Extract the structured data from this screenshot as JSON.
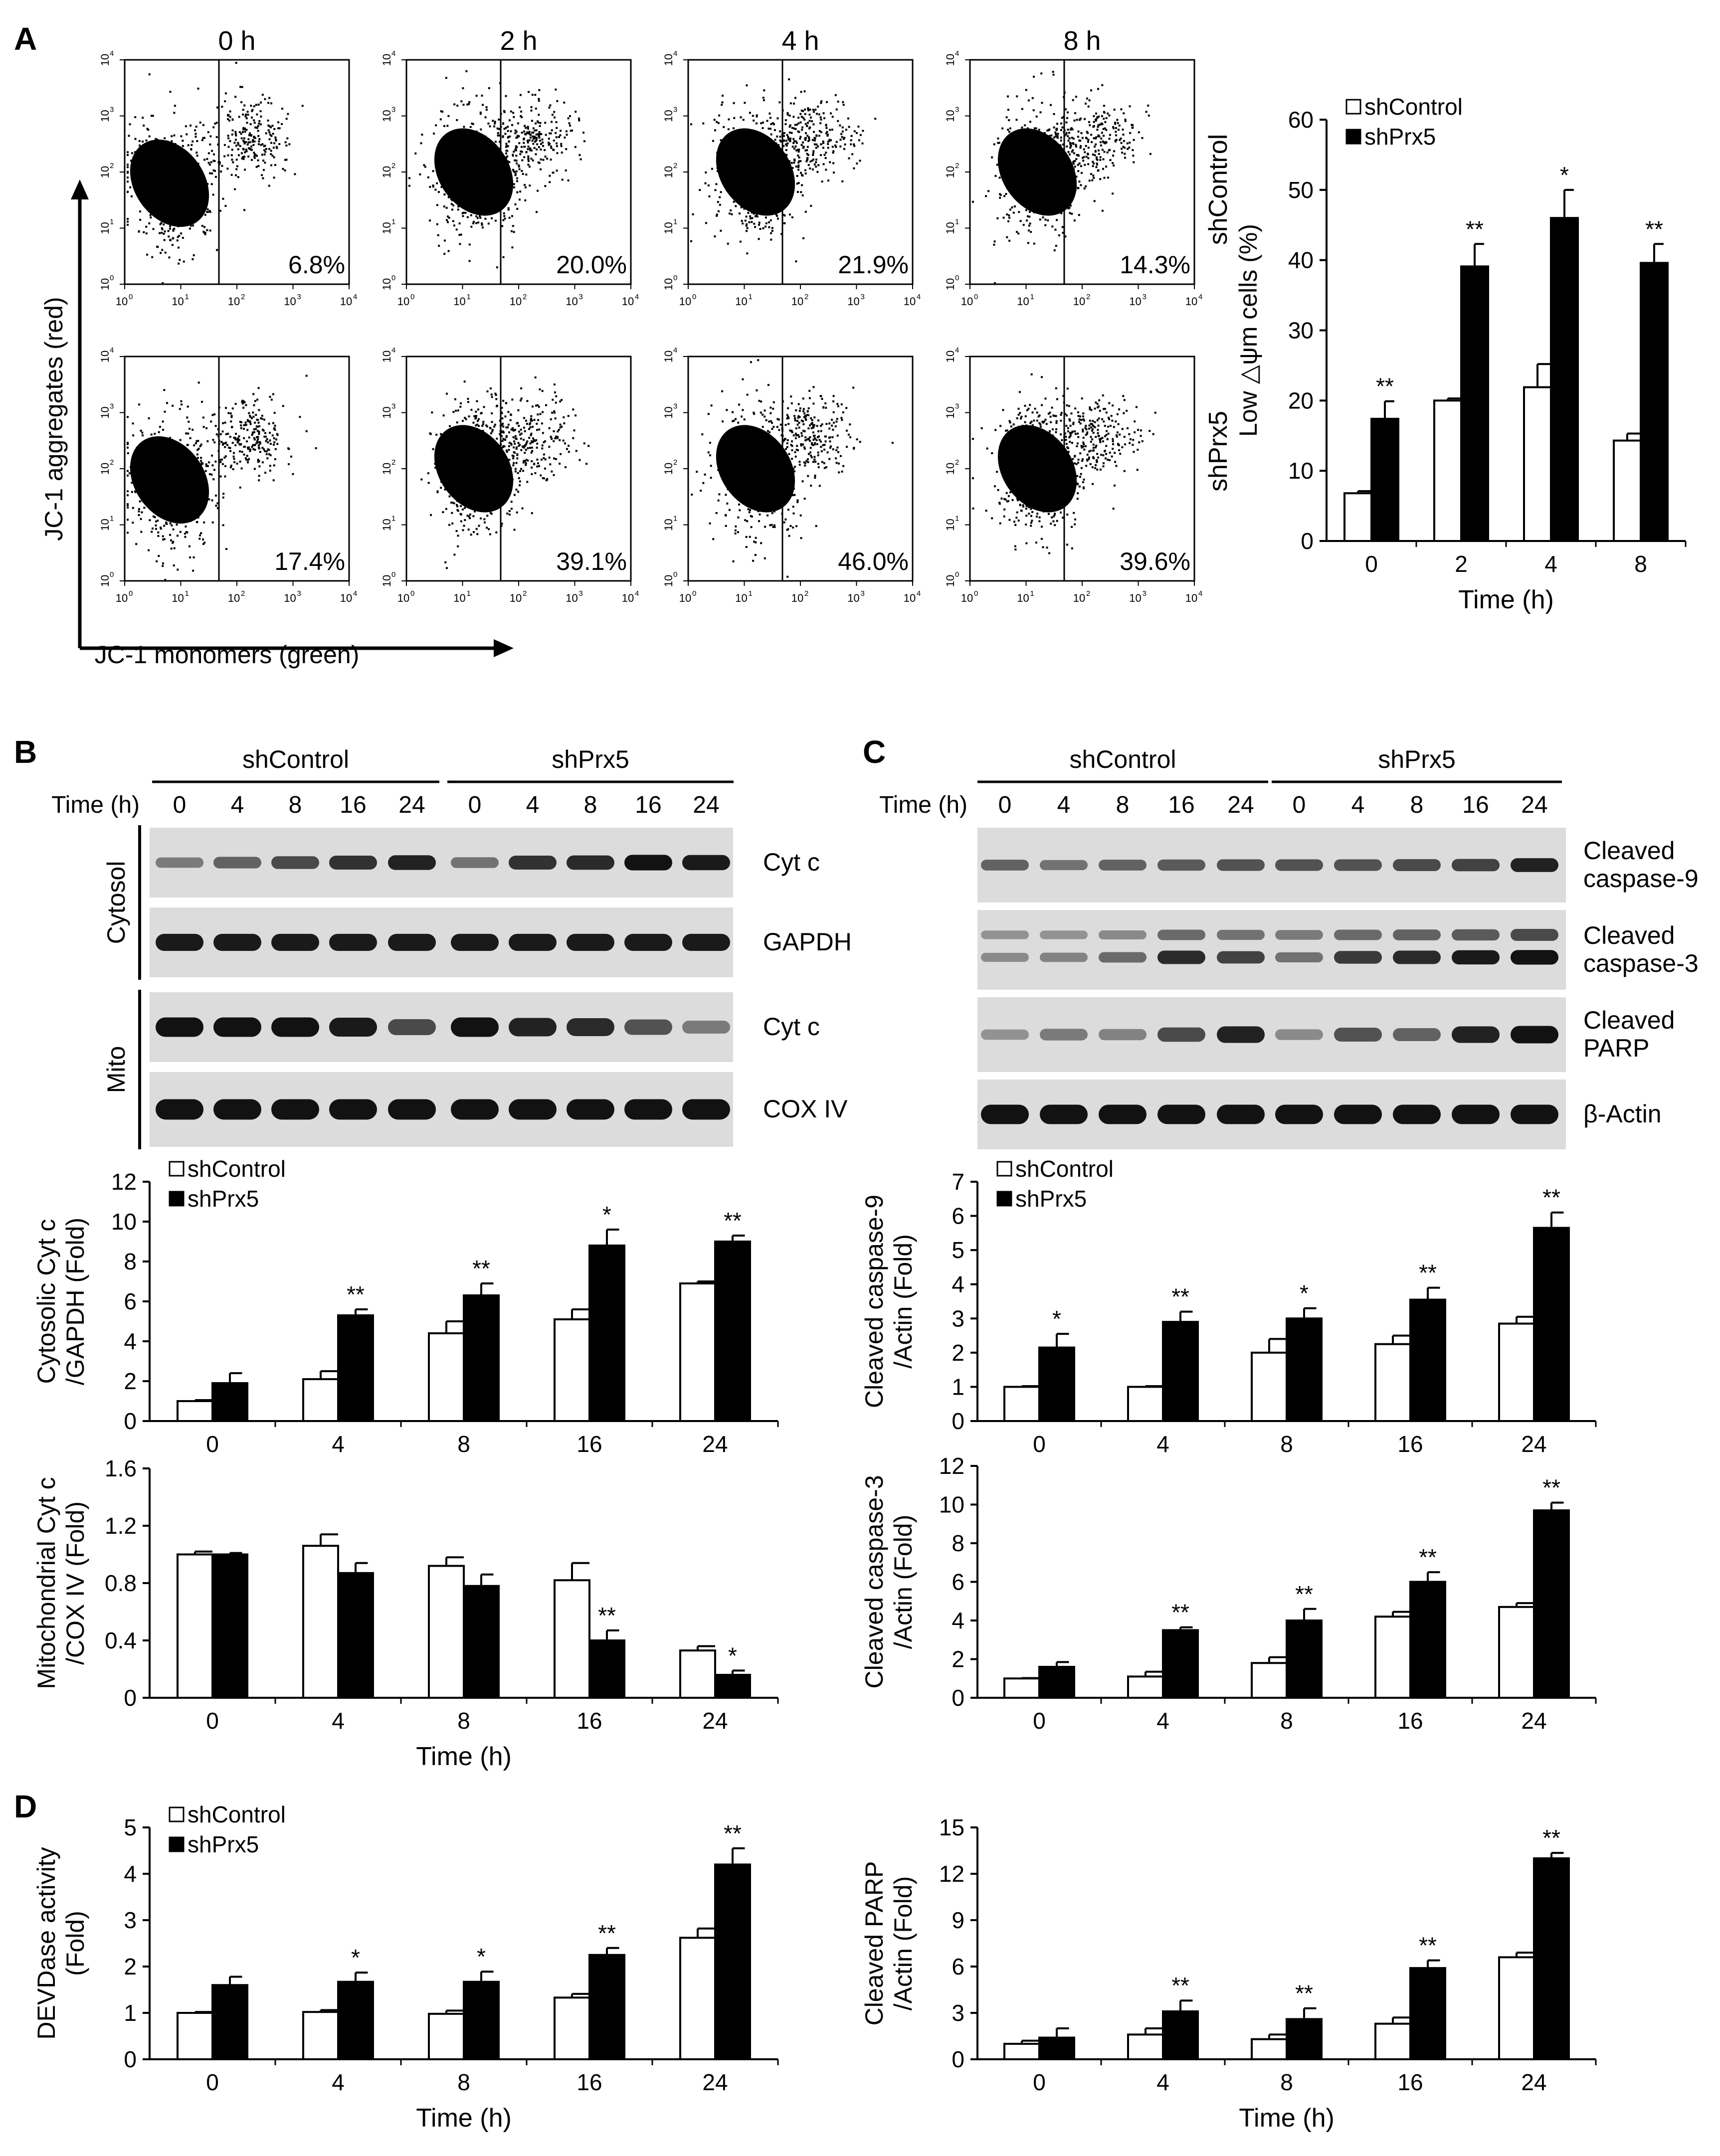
{
  "panel_letters": [
    "A",
    "B",
    "C",
    "D"
  ],
  "panel_A": {
    "time_labels": [
      "0 h",
      "2 h",
      "4 h",
      "8 h"
    ],
    "row_labels": [
      "shControl",
      "shPrx5"
    ],
    "percentages": [
      [
        "6.8%",
        "20.0%",
        "21.9%",
        "14.3%"
      ],
      [
        "17.4%",
        "39.1%",
        "46.0%",
        "39.6%"
      ]
    ],
    "y_axis_title": "JC-1 aggregates (red)",
    "x_axis_title": "JC-1 monomers (green)",
    "log_ticks": [
      "10",
      "10",
      "10",
      "10",
      "10"
    ],
    "log_exponents": [
      "0",
      "1",
      "2",
      "3",
      "4"
    ]
  },
  "blots_B": {
    "groups": [
      "shControl",
      "shPrx5"
    ],
    "time_label": "Time (h)",
    "lanes": [
      "0",
      "4",
      "8",
      "16",
      "24",
      "0",
      "4",
      "8",
      "16",
      "24"
    ],
    "fractions": [
      "Cytosol",
      "Mito"
    ],
    "bands": [
      "Cyt c",
      "GAPDH",
      "Cyt c",
      "COX IV"
    ]
  },
  "blots_C": {
    "groups": [
      "shControl",
      "shPrx5"
    ],
    "time_label": "Time (h)",
    "lanes": [
      "0",
      "4",
      "8",
      "16",
      "24",
      "0",
      "4",
      "8",
      "16",
      "24"
    ],
    "bands": [
      [
        "Cleaved",
        "caspase-9"
      ],
      [
        "Cleaved",
        "caspase-3"
      ],
      [
        "Cleaved",
        "PARP"
      ],
      [
        "β-Actin"
      ]
    ]
  },
  "legend": {
    "control": "shControl",
    "knockdown": "shPrx5"
  },
  "colors": {
    "control": "#ffffff",
    "knockdown": "#000000",
    "ink": "#000000"
  },
  "chart_data": [
    {
      "id": "A-bar",
      "type": "bar",
      "categories": [
        "0",
        "2",
        "4",
        "8"
      ],
      "series": [
        {
          "name": "shControl",
          "values": [
            6.8,
            20.0,
            21.9,
            14.3
          ],
          "errors": [
            0.3,
            0.3,
            3.3,
            1.0
          ]
        },
        {
          "name": "shPrx5",
          "values": [
            17.4,
            39.1,
            46.0,
            39.6
          ],
          "errors": [
            2.5,
            3.2,
            4.0,
            2.7
          ]
        }
      ],
      "significance": [
        "**",
        "**",
        "*",
        "**"
      ],
      "ylim": [
        0,
        60
      ],
      "yticks": [
        "0",
        "10",
        "20",
        "30",
        "40",
        "50",
        "60"
      ],
      "title": "",
      "xlabel": "Time (h)",
      "ylabel": [
        "Low △ψm cells (%)"
      ],
      "legend": "top-left"
    },
    {
      "id": "B-cyto",
      "type": "bar",
      "categories": [
        "0",
        "4",
        "8",
        "16",
        "24"
      ],
      "series": [
        {
          "name": "shControl",
          "values": [
            1.0,
            2.1,
            4.4,
            5.1,
            6.9
          ],
          "errors": [
            0.05,
            0.4,
            0.6,
            0.5,
            0.1
          ]
        },
        {
          "name": "shPrx5",
          "values": [
            1.9,
            5.3,
            6.3,
            8.8,
            9.0
          ],
          "errors": [
            0.5,
            0.3,
            0.6,
            0.8,
            0.3
          ]
        }
      ],
      "significance": [
        "",
        "**",
        "**",
        "*",
        "**"
      ],
      "ylim": [
        0,
        12
      ],
      "yticks": [
        "0",
        "2",
        "4",
        "6",
        "8",
        "10",
        "12"
      ],
      "title": "",
      "xlabel": "",
      "ylabel": [
        "Cytosolic Cyt c",
        "/GAPDH (Fold)"
      ],
      "legend": "top-left"
    },
    {
      "id": "B-mito",
      "type": "bar",
      "categories": [
        "0",
        "4",
        "8",
        "16",
        "24"
      ],
      "series": [
        {
          "name": "shControl",
          "values": [
            1.0,
            1.06,
            0.92,
            0.82,
            0.33
          ],
          "errors": [
            0.02,
            0.08,
            0.06,
            0.12,
            0.03
          ]
        },
        {
          "name": "shPrx5",
          "values": [
            1.0,
            0.87,
            0.78,
            0.4,
            0.16
          ],
          "errors": [
            0.01,
            0.07,
            0.08,
            0.07,
            0.03
          ]
        }
      ],
      "significance": [
        "",
        "",
        "",
        "**",
        "*"
      ],
      "ylim": [
        0,
        1.6
      ],
      "yticks": [
        "0",
        "0.4",
        "0.8",
        "1.2",
        "1.6"
      ],
      "title": "",
      "xlabel": "Time (h)",
      "ylabel": [
        "Mitochondrial Cyt c",
        "/COX IV (Fold)"
      ],
      "legend": "none"
    },
    {
      "id": "C-casp9",
      "type": "bar",
      "categories": [
        "0",
        "4",
        "8",
        "16",
        "24"
      ],
      "series": [
        {
          "name": "shControl",
          "values": [
            1.0,
            1.0,
            2.0,
            2.25,
            2.85
          ],
          "errors": [
            0.02,
            0.02,
            0.4,
            0.25,
            0.2
          ]
        },
        {
          "name": "shPrx5",
          "values": [
            2.15,
            2.9,
            3.0,
            3.55,
            5.65
          ],
          "errors": [
            0.4,
            0.3,
            0.3,
            0.35,
            0.45
          ]
        }
      ],
      "significance": [
        "*",
        "**",
        "*",
        "**",
        "**"
      ],
      "ylim": [
        0,
        7
      ],
      "yticks": [
        "0",
        "1",
        "2",
        "3",
        "4",
        "5",
        "6",
        "7"
      ],
      "title": "",
      "xlabel": "",
      "ylabel": [
        "Cleaved caspase-9",
        "/Actin (Fold)"
      ],
      "legend": "top-left"
    },
    {
      "id": "C-casp3",
      "type": "bar",
      "categories": [
        "0",
        "4",
        "8",
        "16",
        "24"
      ],
      "series": [
        {
          "name": "shControl",
          "values": [
            1.0,
            1.1,
            1.8,
            4.2,
            4.7
          ],
          "errors": [
            0.02,
            0.25,
            0.3,
            0.25,
            0.2
          ]
        },
        {
          "name": "shPrx5",
          "values": [
            1.6,
            3.5,
            4.0,
            6.0,
            9.7
          ],
          "errors": [
            0.25,
            0.15,
            0.6,
            0.5,
            0.4
          ]
        }
      ],
      "significance": [
        "",
        "**",
        "**",
        "**",
        "**"
      ],
      "ylim": [
        0,
        12
      ],
      "yticks": [
        "0",
        "2",
        "4",
        "6",
        "8",
        "10",
        "12"
      ],
      "title": "",
      "xlabel": "",
      "ylabel": [
        "Cleaved caspase-3",
        "/Actin (Fold)"
      ],
      "legend": "none"
    },
    {
      "id": "D-devd",
      "type": "bar",
      "categories": [
        "0",
        "4",
        "8",
        "16",
        "24"
      ],
      "series": [
        {
          "name": "shControl",
          "values": [
            1.0,
            1.02,
            0.98,
            1.33,
            2.62
          ],
          "errors": [
            0.02,
            0.04,
            0.07,
            0.08,
            0.2
          ]
        },
        {
          "name": "shPrx5",
          "values": [
            1.6,
            1.67,
            1.67,
            2.25,
            4.2
          ],
          "errors": [
            0.18,
            0.2,
            0.22,
            0.15,
            0.35
          ]
        }
      ],
      "significance": [
        "",
        "*",
        "*",
        "**",
        "**"
      ],
      "ylim": [
        0,
        5
      ],
      "yticks": [
        "0",
        "1",
        "2",
        "3",
        "4",
        "5"
      ],
      "title": "",
      "xlabel": "Time (h)",
      "ylabel": [
        "DEVDase activity",
        "(Fold)"
      ],
      "legend": "top-left"
    },
    {
      "id": "D-parp",
      "type": "bar",
      "categories": [
        "0",
        "4",
        "8",
        "16",
        "24"
      ],
      "series": [
        {
          "name": "shControl",
          "values": [
            1.0,
            1.6,
            1.3,
            2.3,
            6.6
          ],
          "errors": [
            0.2,
            0.4,
            0.3,
            0.4,
            0.3
          ]
        },
        {
          "name": "shPrx5",
          "values": [
            1.4,
            3.1,
            2.6,
            5.9,
            13.0
          ],
          "errors": [
            0.6,
            0.7,
            0.7,
            0.5,
            0.35
          ]
        }
      ],
      "significance": [
        "",
        "**",
        "**",
        "**",
        "**"
      ],
      "ylim": [
        0,
        15
      ],
      "yticks": [
        "0",
        "3",
        "6",
        "9",
        "12",
        "15"
      ],
      "title": "",
      "xlabel": "Time (h)",
      "ylabel": [
        "Cleaved PARP",
        "/Actin (Fold)"
      ],
      "legend": "none"
    }
  ]
}
